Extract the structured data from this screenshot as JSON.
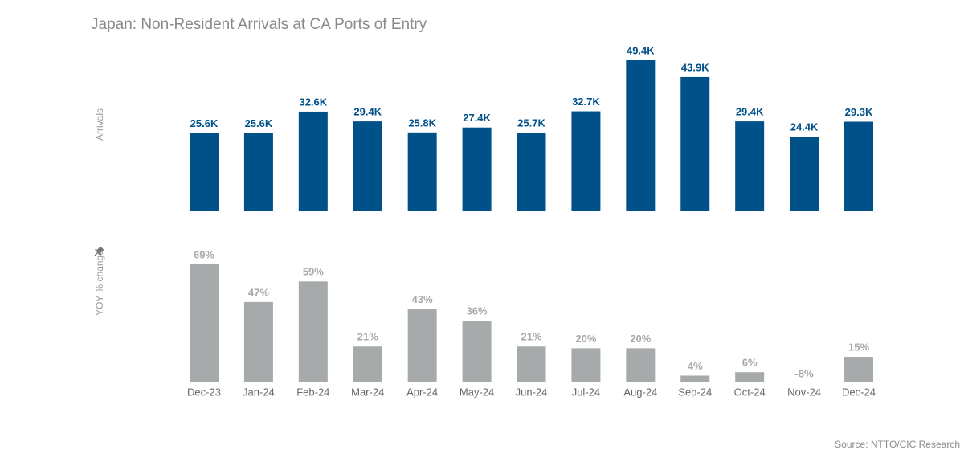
{
  "title": "Japan: Non-Resident Arrivals at CA Ports of Entry",
  "source": "Source: NTTO/CIC Research",
  "chart_data": [
    {
      "type": "bar",
      "y_label": "Arrivals",
      "color": "#00508a",
      "values": [
        25600,
        25600,
        32600,
        29400,
        25800,
        27400,
        25700,
        32700,
        49400,
        43900,
        29400,
        24400,
        29300
      ],
      "value_labels": [
        "25.6K",
        "25.6K",
        "32.6K",
        "29.4K",
        "25.8K",
        "27.4K",
        "25.7K",
        "32.7K",
        "49.4K",
        "43.9K",
        "29.4K",
        "24.4K",
        "29.3K"
      ]
    },
    {
      "type": "bar",
      "y_label": "YOY % change",
      "color": "#a6aaab",
      "categories": [
        "Dec-23",
        "Jan-24",
        "Feb-24",
        "Mar-24",
        "Apr-24",
        "May-24",
        "Jun-24",
        "Jul-24",
        "Aug-24",
        "Sep-24",
        "Oct-24",
        "Nov-24",
        "Dec-24"
      ],
      "values": [
        69,
        47,
        59,
        21,
        43,
        36,
        21,
        20,
        20,
        4,
        6,
        -8,
        15
      ],
      "value_labels": [
        "69%",
        "47%",
        "59%",
        "21%",
        "43%",
        "36%",
        "21%",
        "20%",
        "20%",
        "4%",
        "6%",
        "-8%",
        "15%"
      ]
    }
  ]
}
